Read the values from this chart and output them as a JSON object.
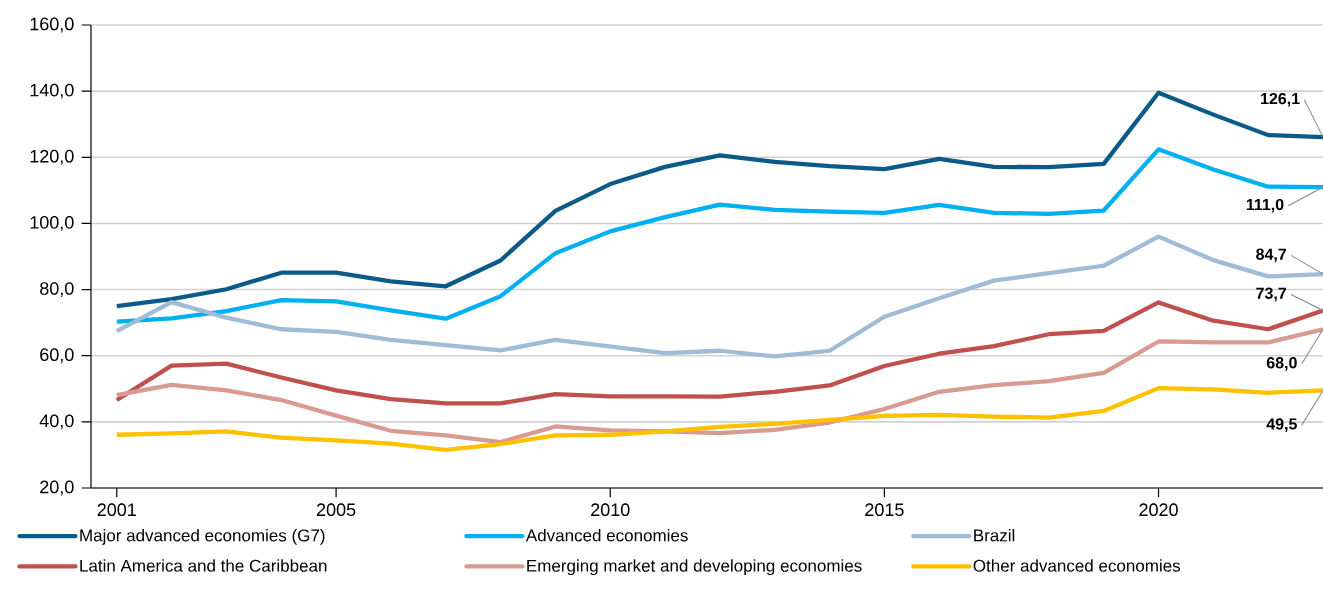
{
  "chart_data": {
    "type": "line",
    "x": [
      2001,
      2002,
      2003,
      2004,
      2005,
      2006,
      2007,
      2008,
      2009,
      2010,
      2011,
      2012,
      2013,
      2014,
      2015,
      2016,
      2017,
      2018,
      2019,
      2020,
      2021,
      2022,
      2023
    ],
    "xlim": [
      2000.53,
      2023
    ],
    "xticks": [
      2001,
      2005,
      2010,
      2015,
      2020
    ],
    "ylim": [
      20,
      160
    ],
    "yticks": [
      {
        "value": 20,
        "label": "20,0"
      },
      {
        "value": 40,
        "label": "40,0"
      },
      {
        "value": 60,
        "label": "60,0"
      },
      {
        "value": 80,
        "label": "80,0"
      },
      {
        "value": 100,
        "label": "100,0"
      },
      {
        "value": 120,
        "label": "120,0"
      },
      {
        "value": 140,
        "label": "140,0"
      },
      {
        "value": 160,
        "label": "160,0"
      }
    ],
    "grid": "y",
    "legend": "bottom",
    "marker": "none",
    "line_style": "solid",
    "series": [
      {
        "name": "Major advanced economies (G7)",
        "color": "#0b5a87",
        "values": [
          75.0,
          77.1,
          80.1,
          85.1,
          85.1,
          82.5,
          81.0,
          88.8,
          103.8,
          111.9,
          117.1,
          120.6,
          118.6,
          117.3,
          116.4,
          119.5,
          117.1,
          117.0,
          118.0,
          139.5,
          132.9,
          126.7,
          126.1
        ],
        "value_labels": [
          null,
          null,
          null,
          null,
          null,
          null,
          null,
          null,
          null,
          null,
          null,
          null,
          null,
          null,
          null,
          null,
          null,
          null,
          null,
          null,
          null,
          null,
          "126,1"
        ]
      },
      {
        "name": "Advanced economies",
        "color": "#00b0f0",
        "values": [
          70.3,
          71.3,
          73.5,
          76.8,
          76.4,
          73.7,
          71.2,
          78.0,
          91.0,
          97.6,
          101.9,
          105.7,
          104.1,
          103.6,
          103.2,
          105.6,
          103.2,
          102.9,
          103.9,
          122.4,
          116.3,
          111.1,
          111.0
        ],
        "value_labels": [
          null,
          null,
          null,
          null,
          null,
          null,
          null,
          null,
          null,
          null,
          null,
          null,
          null,
          null,
          null,
          null,
          null,
          null,
          null,
          null,
          null,
          null,
          "111,0"
        ]
      },
      {
        "name": "Brazil",
        "color": "#9fbbd6",
        "values": [
          67.4,
          76.2,
          71.5,
          68.0,
          67.2,
          64.8,
          63.2,
          61.6,
          64.8,
          62.8,
          60.8,
          61.5,
          59.8,
          61.5,
          71.8,
          77.4,
          82.7,
          85.0,
          87.2,
          96.0,
          88.9,
          84.0,
          84.7
        ],
        "value_labels": [
          null,
          null,
          null,
          null,
          null,
          null,
          null,
          null,
          null,
          null,
          null,
          null,
          null,
          null,
          null,
          null,
          null,
          null,
          null,
          null,
          null,
          null,
          "84,7"
        ]
      },
      {
        "name": "Latin America and the Caribbean",
        "color": "#c0504d",
        "values": [
          46.6,
          57.0,
          57.6,
          53.4,
          49.5,
          46.9,
          45.6,
          45.6,
          48.4,
          47.7,
          47.7,
          47.6,
          49.1,
          51.0,
          56.9,
          60.6,
          62.9,
          66.5,
          67.5,
          76.1,
          70.6,
          68.0,
          73.7
        ],
        "value_labels": [
          null,
          null,
          null,
          null,
          null,
          null,
          null,
          null,
          null,
          null,
          null,
          null,
          null,
          null,
          null,
          null,
          null,
          null,
          null,
          null,
          null,
          null,
          "73,7"
        ]
      },
      {
        "name": "Emerging market and developing economies",
        "color": "#d99a92",
        "values": [
          48.1,
          51.2,
          49.5,
          46.6,
          41.9,
          37.3,
          35.9,
          33.9,
          38.6,
          37.4,
          37.1,
          36.6,
          37.6,
          39.8,
          43.9,
          49.1,
          51.1,
          52.3,
          54.8,
          64.3,
          64.0,
          64.0,
          68.0
        ],
        "value_labels": [
          null,
          null,
          null,
          null,
          null,
          null,
          null,
          null,
          null,
          null,
          null,
          null,
          null,
          null,
          null,
          null,
          null,
          null,
          null,
          null,
          null,
          null,
          "68,0"
        ]
      },
      {
        "name": "Other advanced economies",
        "color": "#ffc000",
        "values": [
          36.1,
          36.5,
          37.1,
          35.2,
          34.4,
          33.4,
          31.5,
          33.3,
          35.9,
          36.1,
          37.1,
          38.5,
          39.4,
          40.6,
          41.8,
          42.1,
          41.6,
          41.3,
          43.3,
          50.2,
          49.8,
          48.8,
          49.5
        ],
        "value_labels": [
          null,
          null,
          null,
          null,
          null,
          null,
          null,
          null,
          null,
          null,
          null,
          null,
          null,
          null,
          null,
          null,
          null,
          null,
          null,
          null,
          null,
          null,
          "49,5"
        ]
      }
    ]
  }
}
